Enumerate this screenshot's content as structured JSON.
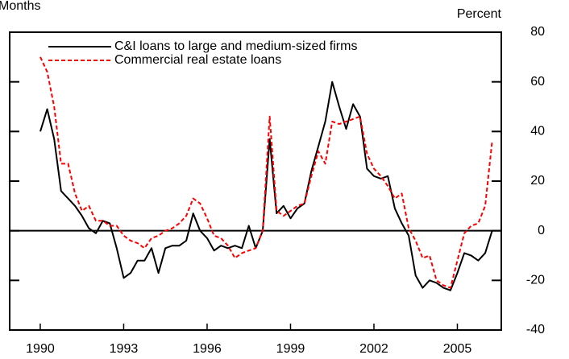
{
  "chart_data": {
    "type": "line",
    "top_left_label": "Months",
    "y_axis_label": "Percent",
    "x": [
      1990,
      1990.25,
      1990.5,
      1990.75,
      1991,
      1991.25,
      1991.5,
      1991.75,
      1992,
      1992.25,
      1992.5,
      1992.75,
      1993,
      1993.25,
      1993.5,
      1993.75,
      1994,
      1994.25,
      1994.5,
      1994.75,
      1995,
      1995.25,
      1995.5,
      1995.75,
      1996,
      1996.25,
      1996.5,
      1996.75,
      1997,
      1997.25,
      1997.5,
      1997.75,
      1998,
      1998.25,
      1998.5,
      1998.75,
      1999,
      1999.25,
      1999.5,
      1999.75,
      2000,
      2000.25,
      2000.5,
      2000.75,
      2001,
      2001.25,
      2001.5,
      2001.75,
      2002,
      2002.25,
      2002.5,
      2002.75,
      2003,
      2003.25,
      2003.5,
      2003.75,
      2004,
      2004.25,
      2004.5,
      2004.75,
      2005,
      2005.25,
      2005.5,
      2005.75,
      2006,
      2006.25
    ],
    "series": [
      {
        "name": "C&I loans to large and medium-sized firms",
        "color": "#000000",
        "dashed": false,
        "values": [
          40,
          49,
          37,
          16,
          13,
          10,
          6,
          1,
          -1,
          4,
          3,
          -7,
          -19,
          -17,
          -12,
          -12,
          -7,
          -17,
          -7,
          -6,
          -6,
          -4,
          7,
          0,
          -3,
          -8,
          -6,
          -7,
          -6,
          -7,
          2,
          -7,
          0,
          37,
          7,
          10,
          5,
          9,
          11,
          24,
          34,
          44,
          60,
          50,
          41,
          51,
          46,
          25,
          22,
          21,
          22,
          9,
          3,
          -2,
          -18,
          -23,
          -20,
          -21,
          -23,
          -24,
          -17,
          -9,
          -10,
          -12,
          -9,
          0
        ]
      },
      {
        "name": "Commercial real estate loans",
        "color": "#ff0000",
        "dashed": true,
        "values": [
          70,
          64,
          50,
          27,
          27,
          15,
          8,
          10,
          4,
          4,
          2,
          2,
          -2,
          -4,
          -5,
          -7,
          -3,
          -2,
          0,
          1,
          3,
          6,
          13,
          11,
          5,
          -2,
          -3,
          -6,
          -11,
          -9,
          -8,
          -7,
          0,
          46,
          8,
          6,
          8,
          10,
          11,
          22,
          32,
          27,
          44,
          43,
          44,
          45,
          46,
          31,
          25,
          22,
          18,
          13,
          15,
          1,
          -4,
          -11,
          -10,
          -20,
          -22,
          -23,
          -12,
          -1,
          2,
          3,
          10,
          36
        ]
      }
    ],
    "xlim": [
      1988.9,
      2006.58
    ],
    "xticks": [
      1990,
      1993,
      1996,
      1999,
      2002,
      2005
    ],
    "ylim": [
      -40,
      80
    ],
    "yticks": [
      -40,
      -20,
      0,
      20,
      40,
      60,
      80
    ],
    "zero_line": true,
    "legend": "upper left"
  }
}
